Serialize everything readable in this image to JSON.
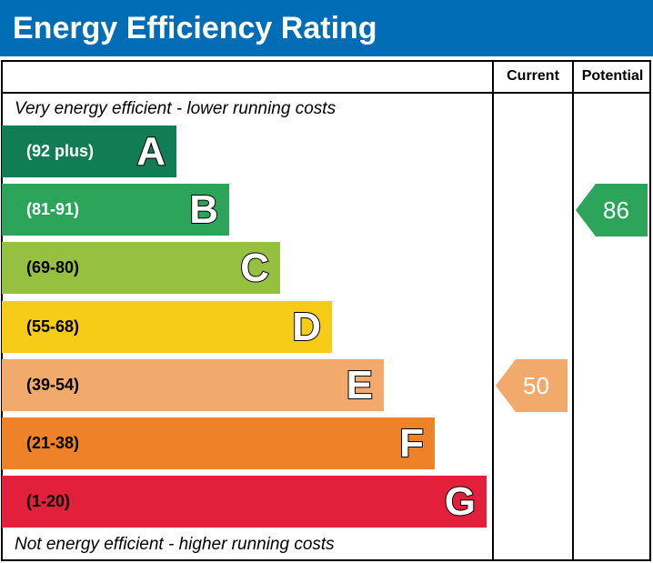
{
  "title": "Energy Efficiency Rating",
  "columns": {
    "current": "Current",
    "potential": "Potential"
  },
  "top_note": "Very energy efficient - lower running costs",
  "bottom_note": "Not energy efficient - higher running costs",
  "chart_data": {
    "type": "bar",
    "title": "Energy Efficiency Rating",
    "bands": [
      {
        "letter": "A",
        "range": "(92 plus)",
        "color": "#107d57",
        "text": "#fff"
      },
      {
        "letter": "B",
        "range": "(81-91)",
        "color": "#2ca55b",
        "text": "#fff"
      },
      {
        "letter": "C",
        "range": "(69-80)",
        "color": "#95c040",
        "text": "#000"
      },
      {
        "letter": "D",
        "range": "(55-68)",
        "color": "#f6cc16",
        "text": "#000"
      },
      {
        "letter": "E",
        "range": "(39-54)",
        "color": "#f2a96c",
        "text": "#000"
      },
      {
        "letter": "F",
        "range": "(21-38)",
        "color": "#ed8228",
        "text": "#000"
      },
      {
        "letter": "G",
        "range": "(1-20)",
        "color": "#e2203c",
        "text": "#000"
      }
    ],
    "current": {
      "value": "50",
      "band": "E"
    },
    "potential": {
      "value": "86",
      "band": "B"
    }
  }
}
